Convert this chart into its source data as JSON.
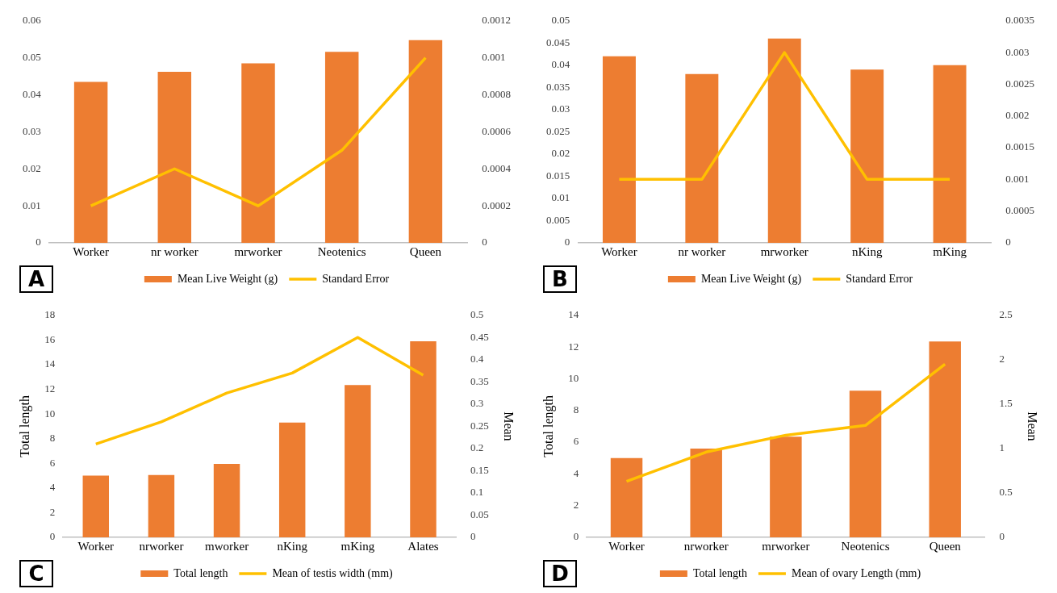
{
  "chart_data": [
    {
      "type": "bar",
      "categories": [
        "Worker",
        "nr worker",
        "mrworker",
        "Neotenics",
        "Queen"
      ],
      "annotations": [
        "A"
      ],
      "legend": "bottom",
      "ylim": [
        0,
        0.06
      ],
      "yticks": [
        0,
        0.01,
        0.02,
        0.03,
        0.04,
        0.05,
        0.06
      ],
      "y2lim": [
        0,
        0.0012
      ],
      "y2ticks": [
        0,
        0.0002,
        0.0004,
        0.0006,
        0.0008,
        0.001,
        0.0012
      ],
      "series": [
        {
          "name": "Mean Live Weight (g)",
          "color": "#ed7d31",
          "values": [
            0.0435,
            0.0462,
            0.0485,
            0.0516,
            0.0548
          ]
        },
        {
          "name": "Standard Error",
          "type": "line",
          "axis": "y2",
          "color": "#ffc000",
          "values": [
            0.0002,
            0.0004,
            0.0002,
            0.0005,
            0.001
          ]
        }
      ]
    },
    {
      "type": "bar",
      "categories": [
        "Worker",
        "nr worker",
        "mrworker",
        "nKing",
        "mKing"
      ],
      "annotations": [
        "B"
      ],
      "legend": "bottom",
      "ylim": [
        0,
        0.05
      ],
      "yticks": [
        0,
        0.005,
        0.01,
        0.015,
        0.02,
        0.025,
        0.03,
        0.035,
        0.04,
        0.045,
        0.05
      ],
      "y2lim": [
        0,
        0.0035
      ],
      "y2ticks": [
        0,
        0.0005,
        0.001,
        0.0015,
        0.002,
        0.0025,
        0.003,
        0.0035
      ],
      "series": [
        {
          "name": "Mean Live Weight (g)",
          "color": "#ed7d31",
          "values": [
            0.042,
            0.038,
            0.046,
            0.039,
            0.04
          ]
        },
        {
          "name": "Standard Error",
          "type": "line",
          "axis": "y2",
          "color": "#ffc000",
          "values": [
            0.001,
            0.001,
            0.003,
            0.001,
            0.001
          ]
        }
      ]
    },
    {
      "type": "bar",
      "categories": [
        "Worker",
        "nrworker",
        "mworker",
        "nKing",
        "mKing",
        "Alates"
      ],
      "annotations": [
        "C"
      ],
      "legend": "bottom",
      "ylabel": "Total length",
      "y2label": "Mean",
      "ylim": [
        0,
        18
      ],
      "yticks": [
        0,
        2,
        4,
        6,
        8,
        10,
        12,
        14,
        16,
        18
      ],
      "y2lim": [
        0,
        0.5
      ],
      "y2ticks": [
        0,
        0.05,
        0.1,
        0.15,
        0.2,
        0.25,
        0.3,
        0.35,
        0.4,
        0.45,
        0.5
      ],
      "series": [
        {
          "name": "Total length",
          "color": "#ed7d31",
          "values": [
            5.0,
            5.05,
            5.95,
            9.3,
            12.35,
            15.9
          ]
        },
        {
          "name": "Mean of testis width (mm)",
          "type": "line",
          "axis": "y2",
          "color": "#ffc000",
          "values": [
            0.21,
            0.26,
            0.325,
            0.37,
            0.45,
            0.365
          ]
        }
      ]
    },
    {
      "type": "bar",
      "categories": [
        "Worker",
        "nrworker",
        "mrworker",
        "Neotenics",
        "Queen"
      ],
      "annotations": [
        "D"
      ],
      "legend": "bottom",
      "ylabel": "Total length",
      "y2label": "Mean",
      "ylim": [
        0,
        14
      ],
      "yticks": [
        0,
        2,
        4,
        6,
        8,
        10,
        12,
        14
      ],
      "y2lim": [
        0,
        2.5
      ],
      "y2ticks": [
        0,
        0.5,
        1,
        1.5,
        2,
        2.5
      ],
      "series": [
        {
          "name": "Total length",
          "color": "#ed7d31",
          "values": [
            5.0,
            5.6,
            6.35,
            9.25,
            12.35
          ]
        },
        {
          "name": "Mean of ovary Length (mm)",
          "type": "line",
          "axis": "y2",
          "color": "#ffc000",
          "values": [
            0.63,
            0.96,
            1.15,
            1.26,
            1.95
          ]
        }
      ]
    }
  ]
}
